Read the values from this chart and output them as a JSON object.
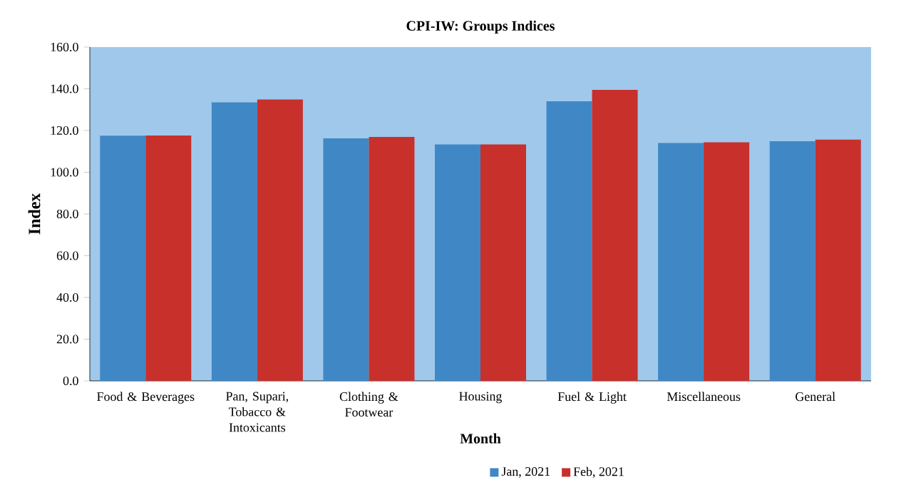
{
  "chart_data": {
    "type": "bar",
    "title": "CPI-IW: Groups Indices",
    "xlabel": "Month",
    "ylabel": "Index",
    "categories": [
      "Food & Beverages",
      "Pan, Supari, Tobacco & Intoxicants",
      "Clothing & Footwear",
      "Housing",
      "Fuel & Light",
      "Miscellaneous",
      "General"
    ],
    "series": [
      {
        "name": "Jan, 2021",
        "color": "#3f88c5",
        "values": [
          117.5,
          133.5,
          116.2,
          113.3,
          134.0,
          114.0,
          114.9
        ]
      },
      {
        "name": "Feb, 2021",
        "color": "#c8302c",
        "values": [
          117.6,
          134.9,
          116.9,
          113.3,
          139.5,
          114.4,
          115.6
        ]
      }
    ],
    "ylim": [
      0,
      160
    ],
    "yticks": [
      {
        "value": 0,
        "label": "0.0"
      },
      {
        "value": 20,
        "label": "20.0"
      },
      {
        "value": 40,
        "label": "40.0"
      },
      {
        "value": 60,
        "label": "60.0"
      },
      {
        "value": 80,
        "label": "80.0"
      },
      {
        "value": 100,
        "label": "100.0"
      },
      {
        "value": 120,
        "label": "120.0"
      },
      {
        "value": 140,
        "label": "140.0"
      },
      {
        "value": 160,
        "label": "160.0"
      }
    ],
    "grid": false,
    "legend": "bottom"
  }
}
